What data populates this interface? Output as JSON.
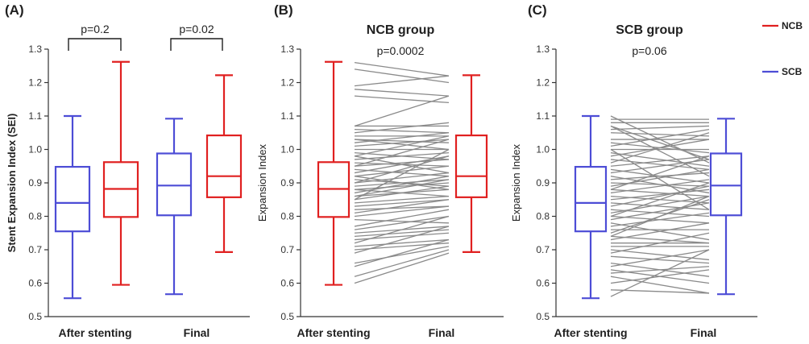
{
  "chart_data": [
    {
      "panel": "(A)",
      "type": "box",
      "title": "",
      "ylabel": "Stent Expansion Index (SEI)",
      "ylim": [
        0.5,
        1.3
      ],
      "yticks": [
        "0.5",
        "0.6",
        "0.7",
        "0.8",
        "0.9",
        "1.0",
        "1.1",
        "1.2",
        "1.3"
      ],
      "categories": [
        "After stenting",
        "Final"
      ],
      "series": [
        {
          "name": "SCB",
          "color": "#4d4dd6",
          "boxes": [
            {
              "category": "After stenting",
              "min": 0.555,
              "q1": 0.755,
              "median": 0.84,
              "q3": 0.948,
              "max": 1.1
            },
            {
              "category": "Final",
              "min": 0.567,
              "q1": 0.803,
              "median": 0.892,
              "q3": 0.988,
              "max": 1.092
            }
          ]
        },
        {
          "name": "NCB",
          "color": "#e02020",
          "boxes": [
            {
              "category": "After stenting",
              "min": 0.595,
              "q1": 0.798,
              "median": 0.882,
              "q3": 0.962,
              "max": 1.262
            },
            {
              "category": "Final",
              "min": 0.693,
              "q1": 0.857,
              "median": 0.92,
              "q3": 1.042,
              "max": 1.222
            }
          ]
        }
      ],
      "annotations": [
        {
          "text": "p=0.2",
          "category": "After stenting"
        },
        {
          "text": "p=0.02",
          "category": "Final"
        }
      ]
    },
    {
      "panel": "(B)",
      "type": "box",
      "title": "NCB group",
      "subtitle": "p=0.0002",
      "ylabel": "Expansion Index",
      "ylim": [
        0.5,
        1.3
      ],
      "yticks": [
        "0.5",
        "0.6",
        "0.7",
        "0.8",
        "0.9",
        "1.0",
        "1.1",
        "1.2",
        "1.3"
      ],
      "categories": [
        "After stenting",
        "Final"
      ],
      "color": "#e02020",
      "boxes": [
        {
          "category": "After stenting",
          "min": 0.595,
          "q1": 0.798,
          "median": 0.882,
          "q3": 0.962,
          "max": 1.262
        },
        {
          "category": "Final",
          "min": 0.693,
          "q1": 0.857,
          "median": 0.92,
          "q3": 1.042,
          "max": 1.222
        }
      ],
      "pairs": [
        [
          1.26,
          1.22
        ],
        [
          1.24,
          1.2
        ],
        [
          1.19,
          1.22
        ],
        [
          1.18,
          1.16
        ],
        [
          1.16,
          1.14
        ],
        [
          1.07,
          1.16
        ],
        [
          1.07,
          1.07
        ],
        [
          1.06,
          1.05
        ],
        [
          1.05,
          1.08
        ],
        [
          1.04,
          1.04
        ],
        [
          1.03,
          1.02
        ],
        [
          1.02,
          1.05
        ],
        [
          1.01,
          1.03
        ],
        [
          1.0,
          1.0
        ],
        [
          0.99,
          0.97
        ],
        [
          0.98,
          1.04
        ],
        [
          0.97,
          0.99
        ],
        [
          0.96,
          0.95
        ],
        [
          0.95,
          1.03
        ],
        [
          0.95,
          0.97
        ],
        [
          0.94,
          0.92
        ],
        [
          0.93,
          0.98
        ],
        [
          0.92,
          0.95
        ],
        [
          0.91,
          0.89
        ],
        [
          0.9,
          0.93
        ],
        [
          0.89,
          0.91
        ],
        [
          0.88,
          0.9
        ],
        [
          0.88,
          0.86
        ],
        [
          0.87,
          0.92
        ],
        [
          0.86,
          0.88
        ],
        [
          0.85,
          0.89
        ],
        [
          0.84,
          0.86
        ],
        [
          0.83,
          0.85
        ],
        [
          0.82,
          0.83
        ],
        [
          0.81,
          0.85
        ],
        [
          0.8,
          0.83
        ],
        [
          0.79,
          0.78
        ],
        [
          0.77,
          0.82
        ],
        [
          0.76,
          0.8
        ],
        [
          0.75,
          0.77
        ],
        [
          0.74,
          0.76
        ],
        [
          0.73,
          0.75
        ],
        [
          0.72,
          0.8
        ],
        [
          0.71,
          0.73
        ],
        [
          0.7,
          0.72
        ],
        [
          0.69,
          0.77
        ],
        [
          0.66,
          0.71
        ],
        [
          0.65,
          0.73
        ],
        [
          0.62,
          0.7
        ],
        [
          0.6,
          0.69
        ],
        [
          0.85,
          1.0
        ],
        [
          0.9,
          0.98
        ],
        [
          0.98,
          0.93
        ],
        [
          1.03,
          1.0
        ],
        [
          0.86,
          0.91
        ],
        [
          0.92,
          0.88
        ]
      ]
    },
    {
      "panel": "(C)",
      "type": "box",
      "title": "SCB group",
      "subtitle": "p=0.06",
      "ylabel": "Expansion Index",
      "ylim": [
        0.5,
        1.3
      ],
      "yticks": [
        "0.5",
        "0.6",
        "0.7",
        "0.8",
        "0.9",
        "1.0",
        "1.1",
        "1.2",
        "1.3"
      ],
      "categories": [
        "After stenting",
        "Final"
      ],
      "color": "#4d4dd6",
      "boxes": [
        {
          "category": "After stenting",
          "min": 0.555,
          "q1": 0.755,
          "median": 0.84,
          "q3": 0.948,
          "max": 1.1
        },
        {
          "category": "Final",
          "min": 0.567,
          "q1": 0.803,
          "median": 0.892,
          "q3": 0.988,
          "max": 1.092
        }
      ],
      "pairs": [
        [
          1.1,
          0.96
        ],
        [
          1.09,
          1.09
        ],
        [
          1.08,
          1.08
        ],
        [
          1.07,
          0.92
        ],
        [
          1.06,
          1.07
        ],
        [
          1.05,
          1.04
        ],
        [
          1.03,
          1.03
        ],
        [
          1.02,
          0.99
        ],
        [
          1.01,
          1.06
        ],
        [
          1.0,
          1.0
        ],
        [
          0.99,
          0.95
        ],
        [
          0.98,
          1.03
        ],
        [
          0.97,
          0.94
        ],
        [
          0.95,
          0.98
        ],
        [
          0.94,
          0.9
        ],
        [
          0.93,
          0.97
        ],
        [
          0.92,
          0.87
        ],
        [
          0.91,
          0.93
        ],
        [
          0.9,
          0.89
        ],
        [
          0.89,
          0.94
        ],
        [
          0.88,
          0.86
        ],
        [
          0.87,
          0.91
        ],
        [
          0.86,
          0.84
        ],
        [
          0.85,
          0.88
        ],
        [
          0.84,
          0.82
        ],
        [
          0.83,
          0.89
        ],
        [
          0.82,
          0.8
        ],
        [
          0.81,
          0.86
        ],
        [
          0.8,
          0.78
        ],
        [
          0.79,
          0.84
        ],
        [
          0.78,
          0.73
        ],
        [
          0.77,
          0.81
        ],
        [
          0.76,
          0.76
        ],
        [
          0.75,
          0.85
        ],
        [
          0.74,
          0.72
        ],
        [
          0.73,
          0.78
        ],
        [
          0.72,
          0.72
        ],
        [
          0.71,
          0.71
        ],
        [
          0.7,
          0.67
        ],
        [
          0.69,
          0.75
        ],
        [
          0.68,
          0.66
        ],
        [
          0.66,
          0.62
        ],
        [
          0.65,
          0.7
        ],
        [
          0.64,
          0.6
        ],
        [
          0.63,
          0.65
        ],
        [
          0.62,
          0.57
        ],
        [
          0.6,
          0.64
        ],
        [
          0.58,
          0.57
        ],
        [
          0.56,
          0.7
        ],
        [
          0.96,
          1.05
        ],
        [
          0.88,
          0.98
        ],
        [
          1.07,
          0.97
        ],
        [
          0.8,
          0.9
        ],
        [
          0.74,
          0.86
        ],
        [
          1.0,
          0.82
        ]
      ]
    }
  ],
  "legend": {
    "position": "top-right",
    "items": [
      {
        "label": "NCB",
        "color": "#e02020"
      },
      {
        "label": "SCB",
        "color": "#4d4dd6"
      }
    ]
  },
  "colors": {
    "pair_line": "#8a8a8a",
    "axis": "#333333"
  }
}
